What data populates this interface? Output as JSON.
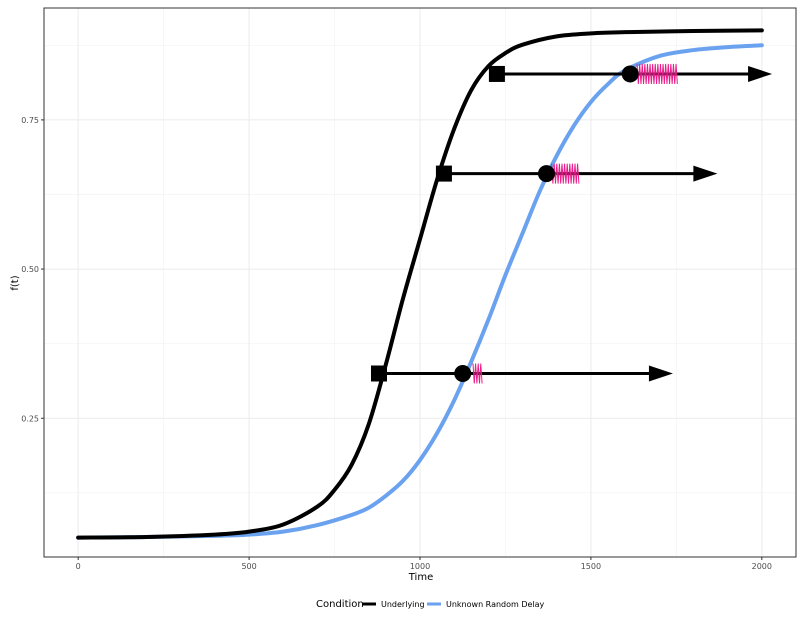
{
  "chart_data": {
    "type": "line",
    "title": "",
    "xlabel": "Time",
    "ylabel": "f(t)",
    "xlim": [
      -100,
      2100
    ],
    "ylim": [
      0.0175,
      0.9375
    ],
    "x_ticks": [
      0,
      500,
      1000,
      1500,
      2000
    ],
    "y_ticks": [
      0.25,
      0.5,
      0.75
    ],
    "x_tick_labels": [
      "0",
      "500",
      "1000",
      "1500",
      "2000"
    ],
    "y_tick_labels": [
      "0.25",
      "0.50",
      "0.75"
    ],
    "grid": true,
    "legend": {
      "title": "Condition",
      "position": "bottom",
      "entries": [
        "Underlying",
        "Unknown Random Delay"
      ]
    },
    "series": [
      {
        "name": "Underlying",
        "color": "#000000",
        "x": [
          0,
          200,
          400,
          500,
          600,
          700,
          750,
          800,
          850,
          900,
          950,
          1000,
          1050,
          1100,
          1150,
          1200,
          1250,
          1300,
          1400,
          1500,
          1600,
          1800,
          2000
        ],
        "y": [
          0.05,
          0.051,
          0.055,
          0.06,
          0.072,
          0.102,
          0.13,
          0.172,
          0.24,
          0.34,
          0.45,
          0.55,
          0.65,
          0.735,
          0.8,
          0.84,
          0.862,
          0.876,
          0.89,
          0.895,
          0.897,
          0.899,
          0.9
        ]
      },
      {
        "name": "Unknown Random Delay",
        "color": "#6aa2f0",
        "x": [
          0,
          200,
          400,
          500,
          600,
          700,
          800,
          850,
          900,
          950,
          1000,
          1050,
          1100,
          1150,
          1200,
          1250,
          1300,
          1350,
          1400,
          1450,
          1500,
          1550,
          1600,
          1700,
          1800,
          1900,
          2000
        ],
        "y": [
          0.05,
          0.051,
          0.053,
          0.055,
          0.06,
          0.071,
          0.088,
          0.1,
          0.12,
          0.145,
          0.18,
          0.225,
          0.28,
          0.345,
          0.415,
          0.49,
          0.56,
          0.63,
          0.69,
          0.74,
          0.78,
          0.81,
          0.833,
          0.857,
          0.867,
          0.872,
          0.875
        ]
      }
    ],
    "arrows": [
      {
        "x_start": 880,
        "x_end": 1740,
        "y": 0.325
      },
      {
        "x_start": 1070,
        "x_end": 1870,
        "y": 0.66
      },
      {
        "x_start": 1225,
        "x_end": 2030,
        "y": 0.827
      }
    ],
    "square_markers": [
      {
        "x": 880,
        "y": 0.325
      },
      {
        "x": 1070,
        "y": 0.66
      },
      {
        "x": 1225,
        "y": 0.827
      }
    ],
    "circle_markers": [
      {
        "x": 1125,
        "y": 0.325
      },
      {
        "x": 1370,
        "y": 0.66
      },
      {
        "x": 1615,
        "y": 0.827
      }
    ],
    "pink_ticks": [
      {
        "x_start": 1155,
        "x_end": 1185,
        "y": 0.325
      },
      {
        "x_start": 1385,
        "x_end": 1465,
        "y": 0.66
      },
      {
        "x_start": 1635,
        "x_end": 1755,
        "y": 0.827
      }
    ],
    "marker_color": "#000000",
    "tick_color": "#e91e8c"
  }
}
